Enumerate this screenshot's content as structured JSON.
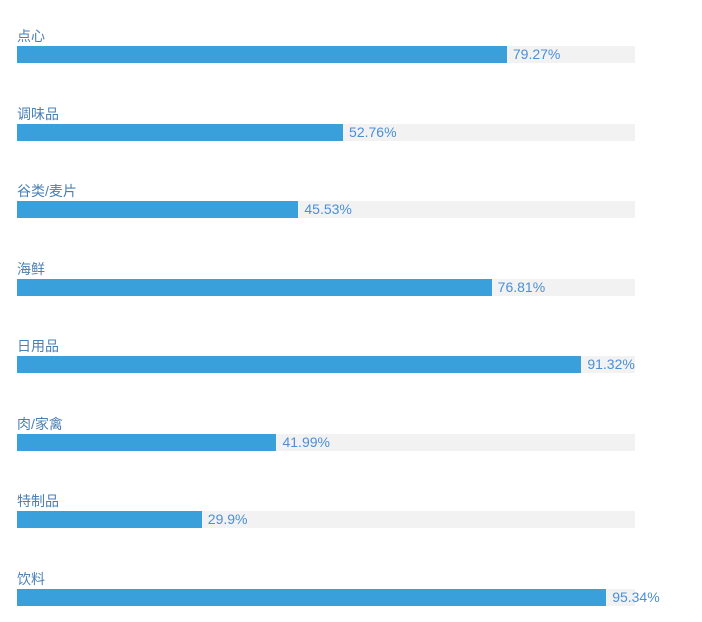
{
  "chart_data": {
    "type": "bar",
    "orientation": "horizontal",
    "categories": [
      "点心",
      "调味品",
      "谷类/麦片",
      "海鲜",
      "日用品",
      "肉/家禽",
      "特制品",
      "饮料"
    ],
    "values": [
      79.27,
      52.76,
      45.53,
      76.81,
      91.32,
      41.99,
      29.9,
      95.34
    ],
    "value_labels": [
      "79.27%",
      "52.76%",
      "45.53%",
      "76.81%",
      "91.32%",
      "41.99%",
      "29.9%",
      "95.34%"
    ],
    "unit": "%",
    "xlim": [
      0,
      100
    ],
    "grid": false,
    "legend": "none",
    "colors": {
      "bar": "#3aa0db",
      "track": "#f2f2f2",
      "category_label": "#4a7fb5",
      "value_label": "#4a8fd8"
    }
  }
}
